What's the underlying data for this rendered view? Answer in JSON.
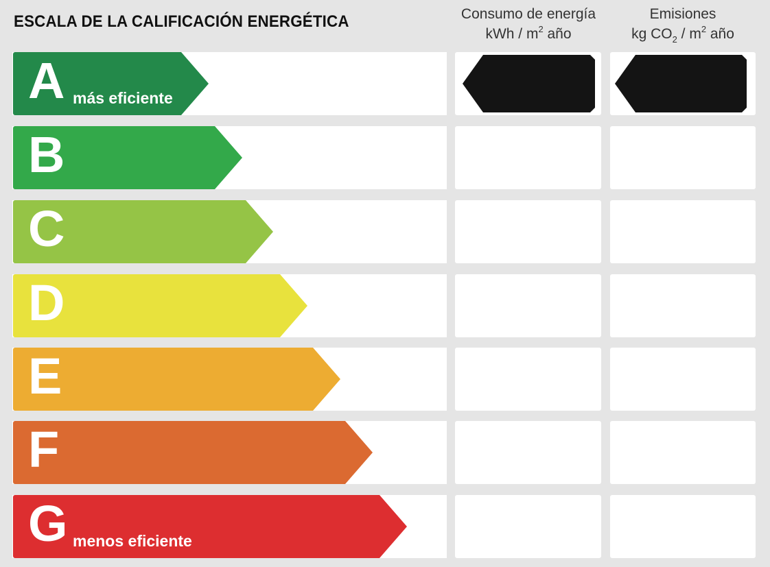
{
  "header": {
    "title": "ESCALA DE LA CALIFICACIÓN ENERGÉTICA",
    "energy": {
      "line1": "Consumo de energía",
      "unit_pre": "kWh / m",
      "unit_sup": "2",
      "unit_post": " año"
    },
    "emissions": {
      "line1": "Emisiones",
      "unit_pre": "kg CO",
      "unit_sub": "2",
      "unit_mid": " / m",
      "unit_sup": "2",
      "unit_post": " año"
    }
  },
  "rows": [
    {
      "letter": "A",
      "label": "más eficiente",
      "color": "#23894a"
    },
    {
      "letter": "B",
      "label": "",
      "color": "#33a94a"
    },
    {
      "letter": "C",
      "label": "",
      "color": "#95c446"
    },
    {
      "letter": "D",
      "label": "",
      "color": "#e8e23d"
    },
    {
      "letter": "E",
      "label": "",
      "color": "#edac32"
    },
    {
      "letter": "F",
      "label": "",
      "color": "#db6a31"
    },
    {
      "letter": "G",
      "label": "menos eficiente",
      "color": "#dd2e30"
    }
  ],
  "indicators": {
    "energy_rating": "A",
    "emissions_rating": "A",
    "color": "#141414"
  }
}
